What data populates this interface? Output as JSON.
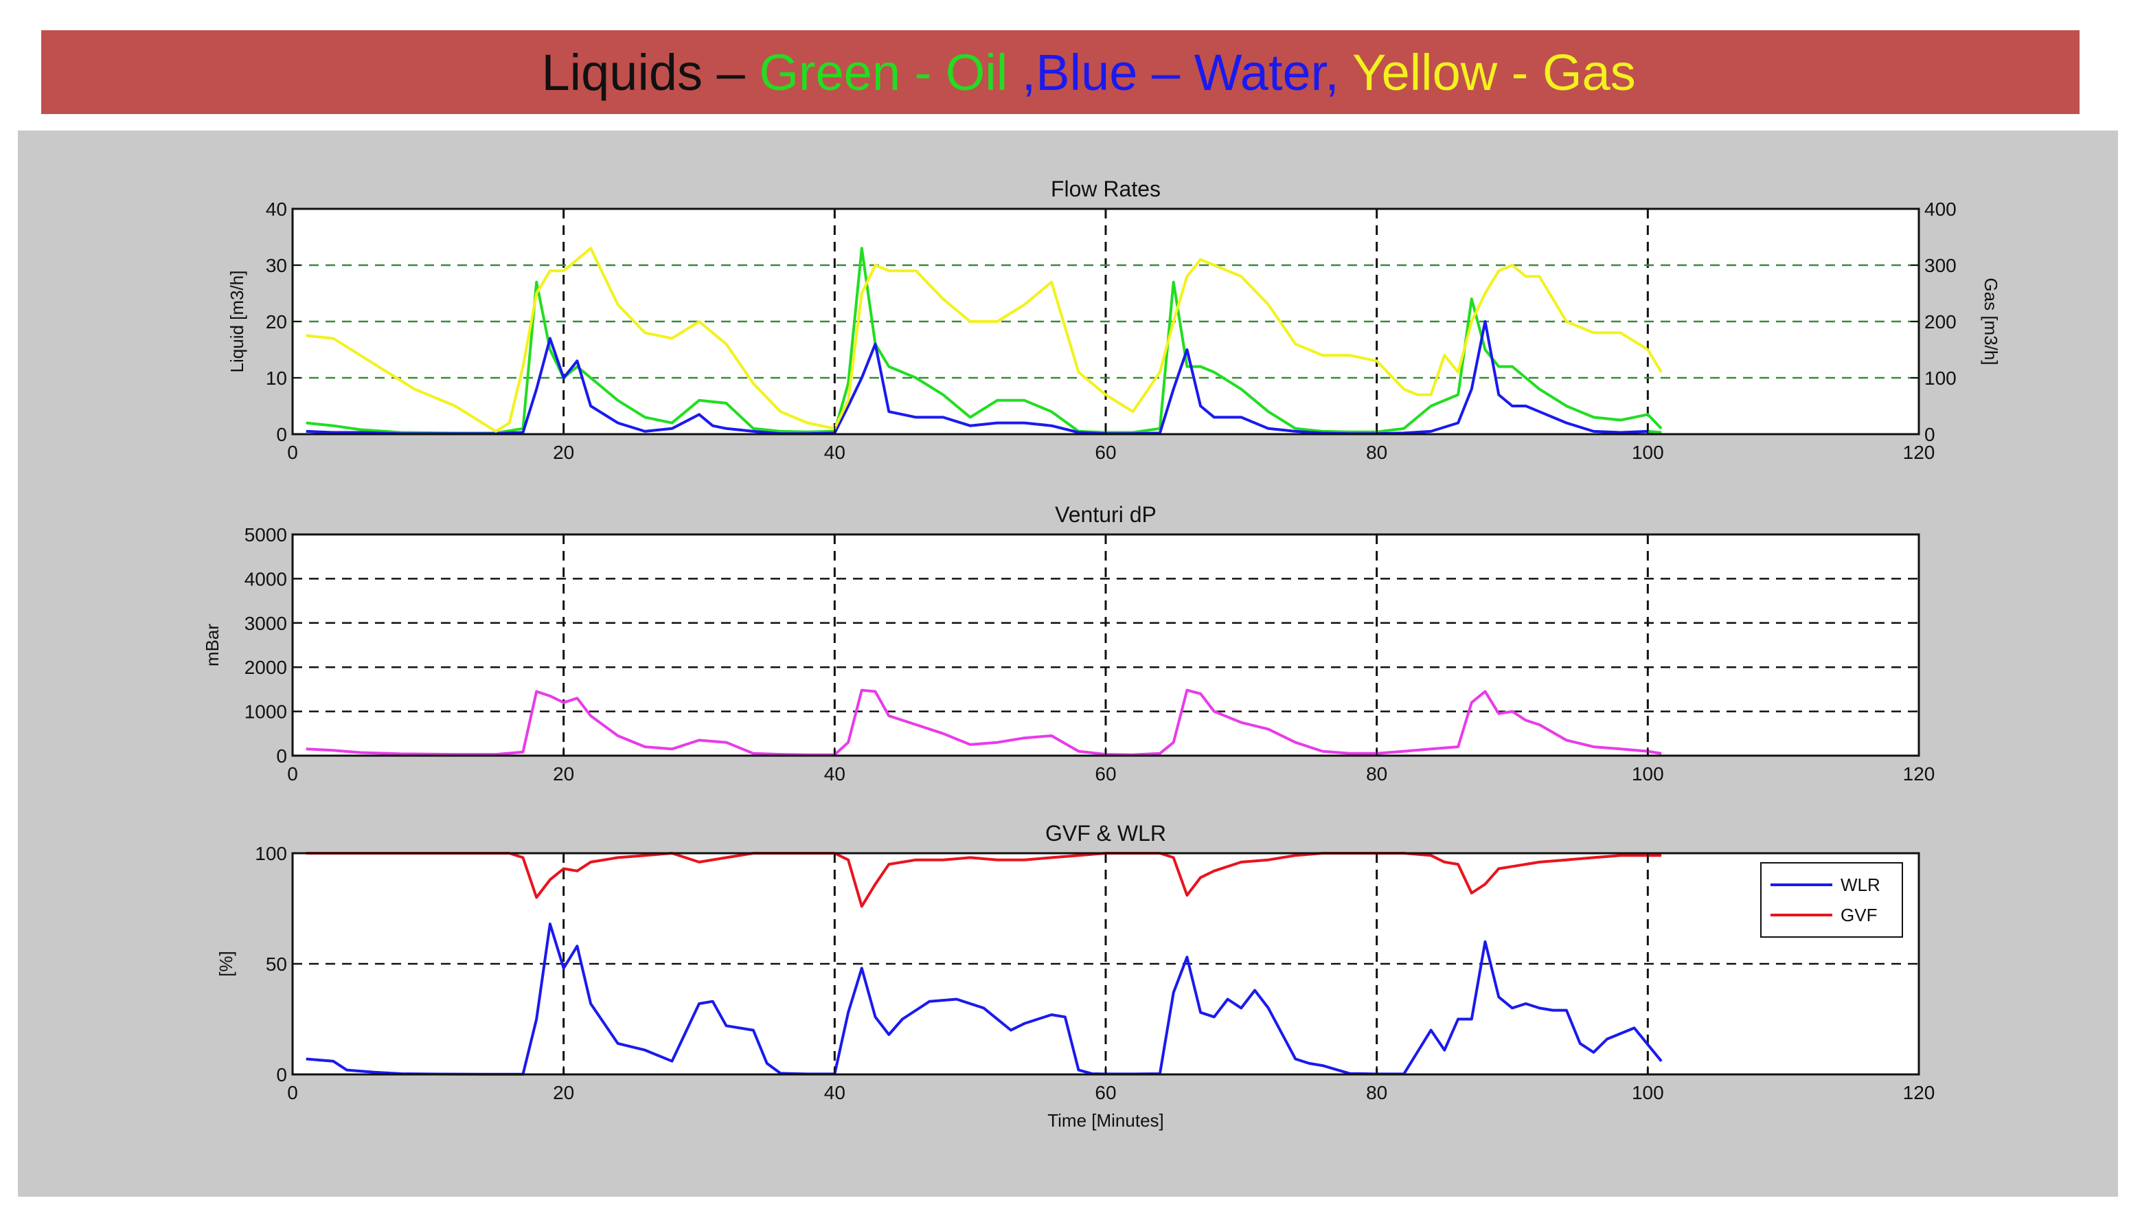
{
  "banner": {
    "background": "#c0504d",
    "segments": [
      {
        "text": "Liquids – ",
        "color": "#111111"
      },
      {
        "text": "Green - Oil ",
        "color": "#22dd22"
      },
      {
        "text": ",Blue – Water, ",
        "color": "#1a1aee"
      },
      {
        "text": "Yellow - Gas",
        "color": "#f2f21e"
      }
    ]
  },
  "chart_data": [
    {
      "type": "line",
      "title": "Flow Rates",
      "xlim": [
        0,
        120
      ],
      "xticks": [
        0,
        20,
        40,
        60,
        80,
        100,
        120
      ],
      "ylabel": "Liquid [m3/h]",
      "ylim": [
        0,
        40
      ],
      "yticks": [
        0,
        10,
        20,
        30,
        40
      ],
      "y2label": "Gas [m3/h]",
      "y2lim": [
        0,
        400
      ],
      "y2ticks": [
        0,
        100,
        200,
        300,
        400
      ],
      "grid": true,
      "series": [
        {
          "color": "#22dd22",
          "axis": "left",
          "x": [
            1,
            3,
            5,
            8,
            12,
            15,
            17,
            18,
            19,
            20,
            21,
            22,
            24,
            26,
            28,
            30,
            32,
            34,
            36,
            38,
            40,
            41,
            42,
            43,
            44,
            46,
            48,
            50,
            52,
            54,
            56,
            58,
            60,
            62,
            64,
            65,
            66,
            67,
            68,
            70,
            72,
            74,
            76,
            78,
            80,
            82,
            84,
            86,
            87,
            88,
            89,
            90,
            91,
            92,
            94,
            96,
            98,
            99,
            100,
            101
          ],
          "y": [
            2,
            1.5,
            0.8,
            0.3,
            0.2,
            0.2,
            1,
            27,
            15,
            10,
            12,
            10,
            6,
            3,
            2,
            6,
            5.5,
            1,
            0.5,
            0.4,
            0.5,
            9,
            33,
            16,
            12,
            10,
            7,
            3,
            6,
            6,
            4,
            0.5,
            0.3,
            0.3,
            1,
            27,
            12,
            12,
            11,
            8,
            4,
            1,
            0.5,
            0.4,
            0.4,
            1,
            5,
            7,
            24,
            15,
            12,
            12,
            10,
            8,
            5,
            3,
            2.5,
            3,
            3.5,
            1
          ]
        },
        {
          "color": "#1a1aee",
          "axis": "left",
          "x": [
            1,
            3,
            5,
            8,
            12,
            15,
            17,
            18,
            19,
            20,
            21,
            22,
            24,
            26,
            28,
            30,
            31,
            32,
            34,
            36,
            38,
            40,
            41,
            42,
            43,
            44,
            46,
            48,
            50,
            52,
            54,
            56,
            58,
            60,
            62,
            64,
            65,
            66,
            67,
            68,
            69,
            70,
            72,
            74,
            76,
            78,
            80,
            82,
            84,
            86,
            87,
            88,
            89,
            90,
            91,
            92,
            94,
            96,
            98,
            100,
            101
          ],
          "y": [
            0.5,
            0.3,
            0.3,
            0.1,
            0.1,
            0.1,
            0.3,
            8,
            17,
            10,
            13,
            5,
            2,
            0.5,
            1,
            3.5,
            1.5,
            1,
            0.5,
            0.1,
            0.1,
            0.2,
            5,
            10,
            16,
            4,
            3,
            3,
            1.5,
            2,
            2,
            1.5,
            0.3,
            0.1,
            0.1,
            0.2,
            8,
            15,
            5,
            3,
            3,
            3,
            1,
            0.5,
            0.2,
            0.1,
            0.1,
            0.2,
            0.5,
            2,
            8,
            20,
            7,
            5,
            5,
            4,
            2,
            0.5,
            0.3,
            0.5,
            0.2
          ]
        },
        {
          "color": "#f2f21e",
          "axis": "right",
          "x": [
            1,
            3,
            5,
            7,
            9,
            12,
            14,
            15,
            16,
            17,
            18,
            19,
            20,
            22,
            24,
            26,
            28,
            30,
            32,
            34,
            36,
            38,
            40,
            41,
            42,
            43,
            44,
            46,
            48,
            50,
            52,
            54,
            56,
            58,
            60,
            62,
            64,
            65,
            66,
            67,
            68,
            70,
            72,
            74,
            76,
            78,
            80,
            82,
            83,
            84,
            85,
            86,
            87,
            88,
            89,
            90,
            91,
            92,
            94,
            96,
            98,
            100,
            101
          ],
          "y": [
            175,
            170,
            140,
            110,
            80,
            50,
            20,
            5,
            20,
            120,
            250,
            290,
            290,
            330,
            230,
            180,
            170,
            200,
            160,
            90,
            40,
            20,
            10,
            60,
            250,
            300,
            290,
            290,
            240,
            200,
            200,
            230,
            270,
            110,
            70,
            40,
            110,
            200,
            280,
            310,
            300,
            280,
            230,
            160,
            140,
            140,
            130,
            80,
            70,
            70,
            140,
            110,
            200,
            250,
            290,
            300,
            280,
            280,
            200,
            180,
            180,
            150,
            110
          ]
        },
        {
          "color": "#22dd22",
          "axis": "left",
          "x": [
            100,
            101
          ],
          "y": [
            0.5,
            0.3
          ]
        }
      ]
    },
    {
      "type": "line",
      "title": "Venturi dP",
      "xlim": [
        0,
        120
      ],
      "xticks": [
        0,
        20,
        40,
        60,
        80,
        100,
        120
      ],
      "ylabel": "mBar",
      "ylim": [
        0,
        5000
      ],
      "yticks": [
        0,
        1000,
        2000,
        3000,
        4000,
        5000
      ],
      "grid": true,
      "series": [
        {
          "color": "#e83ce8",
          "x": [
            1,
            3,
            5,
            8,
            12,
            15,
            17,
            18,
            19,
            20,
            21,
            22,
            24,
            26,
            28,
            30,
            32,
            34,
            36,
            38,
            40,
            41,
            42,
            43,
            44,
            46,
            48,
            50,
            52,
            54,
            56,
            58,
            60,
            62,
            64,
            65,
            66,
            67,
            68,
            70,
            72,
            74,
            76,
            78,
            80,
            82,
            84,
            86,
            87,
            88,
            89,
            90,
            91,
            92,
            94,
            96,
            98,
            100,
            101
          ],
          "y": [
            150,
            120,
            70,
            40,
            30,
            30,
            80,
            1450,
            1350,
            1200,
            1300,
            900,
            450,
            200,
            150,
            350,
            300,
            50,
            30,
            20,
            20,
            300,
            1480,
            1450,
            900,
            700,
            500,
            250,
            300,
            400,
            450,
            100,
            30,
            20,
            50,
            300,
            1480,
            1400,
            1000,
            750,
            600,
            300,
            100,
            50,
            50,
            100,
            150,
            200,
            1200,
            1450,
            950,
            1000,
            800,
            700,
            350,
            200,
            150,
            100,
            50
          ]
        }
      ]
    },
    {
      "type": "line",
      "title": "GVF & WLR",
      "xlim": [
        0,
        120
      ],
      "xticks": [
        0,
        20,
        40,
        60,
        80,
        100,
        120
      ],
      "xlabel": "Time [Minutes]",
      "ylabel": "[%]",
      "ylim": [
        0,
        100
      ],
      "yticks": [
        0,
        50,
        100
      ],
      "grid": true,
      "legend": {
        "placement": "top-right"
      },
      "series": [
        {
          "name": "WLR",
          "color": "#1a1aee",
          "x": [
            1,
            3,
            4,
            6,
            8,
            10,
            14,
            17,
            18,
            19,
            20,
            21,
            22,
            24,
            26,
            28,
            30,
            31,
            32,
            34,
            35,
            36,
            38,
            40,
            41,
            42,
            43,
            44,
            45,
            47,
            49,
            51,
            53,
            54,
            56,
            57,
            58,
            59,
            60,
            62,
            64,
            65,
            66,
            67,
            68,
            69,
            70,
            71,
            72,
            74,
            75,
            76,
            78,
            79,
            80,
            82,
            84,
            85,
            86,
            87,
            88,
            89,
            90,
            91,
            92,
            93,
            94,
            95,
            96,
            97,
            99,
            101
          ],
          "y": [
            7,
            6,
            2,
            1,
            0.3,
            0.2,
            0.1,
            0.1,
            25,
            68,
            48,
            58,
            32,
            14,
            11,
            6,
            32,
            33,
            22,
            20,
            5,
            0.5,
            0.2,
            0.2,
            28,
            48,
            26,
            18,
            25,
            33,
            34,
            30,
            20,
            23,
            27,
            26,
            2,
            0.3,
            0.2,
            0.2,
            0.3,
            37,
            53,
            28,
            26,
            34,
            30,
            38,
            30,
            7,
            5,
            4,
            0.4,
            0.3,
            0.2,
            0.2,
            20,
            11,
            25,
            25,
            60,
            35,
            30,
            32,
            30,
            29,
            29,
            14,
            10,
            16,
            21,
            6
          ]
        },
        {
          "name": "GVF",
          "color": "#e8141e",
          "x": [
            1,
            10,
            16,
            17,
            18,
            19,
            20,
            21,
            22,
            24,
            26,
            28,
            30,
            32,
            34,
            36,
            40,
            41,
            42,
            43,
            44,
            46,
            48,
            50,
            52,
            54,
            56,
            58,
            60,
            64,
            65,
            66,
            67,
            68,
            70,
            72,
            74,
            76,
            78,
            80,
            82,
            84,
            85,
            86,
            87,
            88,
            89,
            90,
            92,
            94,
            96,
            98,
            100,
            101
          ],
          "y": [
            100,
            100,
            100,
            98,
            80,
            88,
            93,
            92,
            96,
            98,
            99,
            100,
            96,
            98,
            100,
            100,
            100,
            97,
            76,
            86,
            95,
            97,
            97,
            98,
            97,
            97,
            98,
            99,
            100,
            100,
            98,
            81,
            89,
            92,
            96,
            97,
            99,
            100,
            100,
            100,
            100,
            99,
            96,
            95,
            82,
            86,
            93,
            94,
            96,
            97,
            98,
            99,
            99,
            99
          ]
        }
      ]
    }
  ]
}
